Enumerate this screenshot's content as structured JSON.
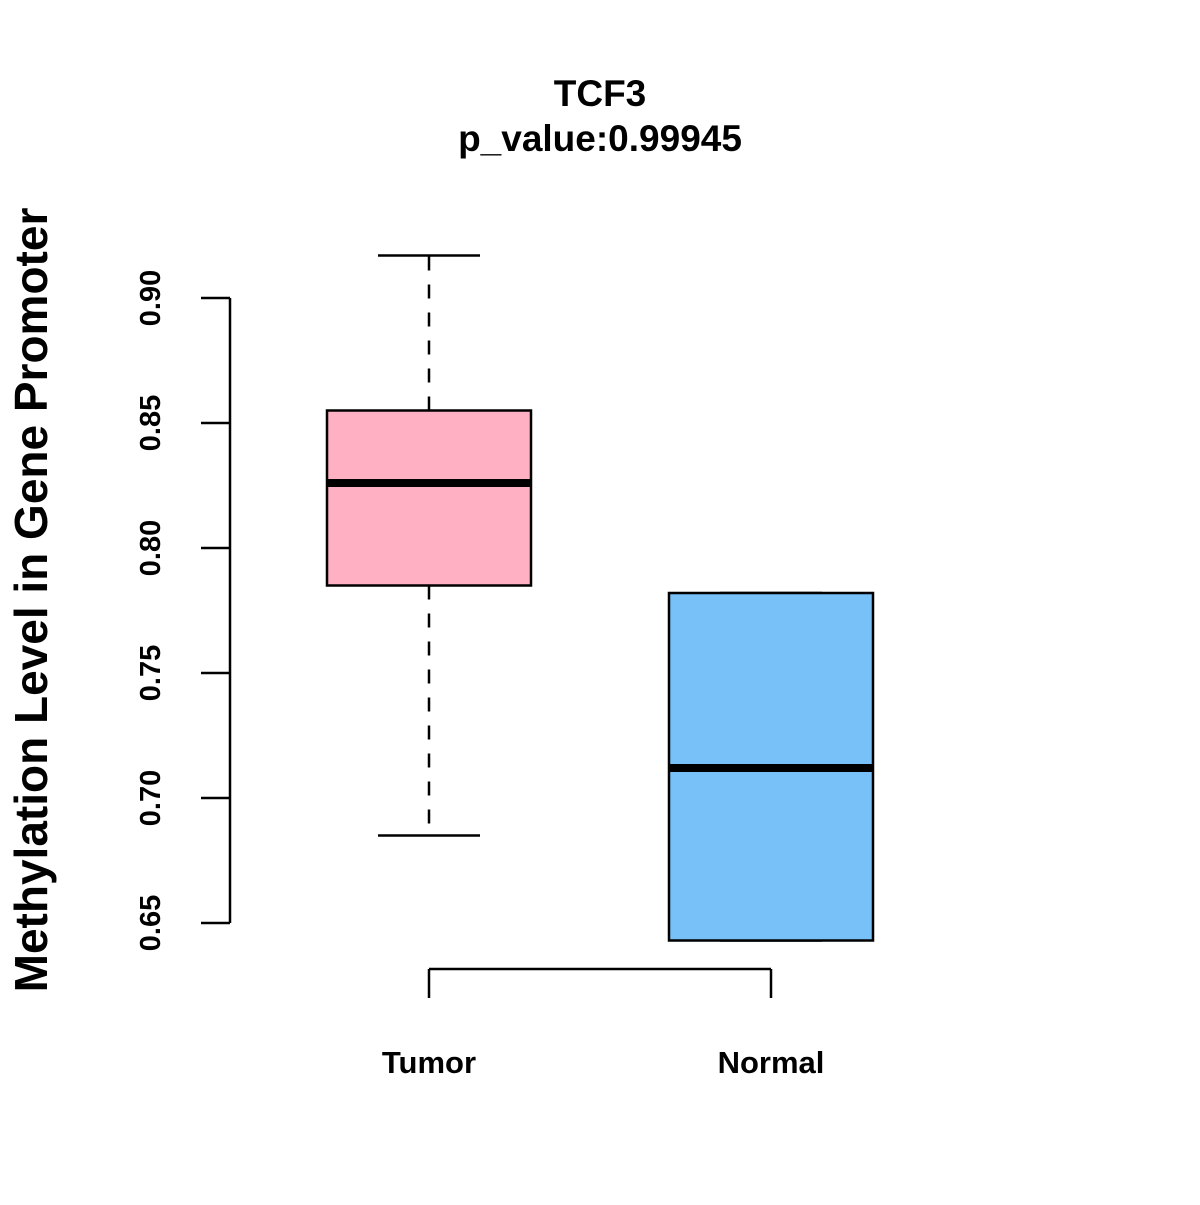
{
  "chart_data": {
    "type": "boxplot",
    "title": "TCF3",
    "subtitle": "p_value:0.99945",
    "xlabel": "",
    "ylabel": "Methylation Level in Gene Promoter",
    "ylim": [
      0.65,
      0.9
    ],
    "yticks": [
      0.65,
      0.7,
      0.75,
      0.8,
      0.85,
      0.9
    ],
    "ytick_labels": [
      "0.65",
      "0.70",
      "0.75",
      "0.80",
      "0.85",
      "0.90"
    ],
    "grid": false,
    "categories": [
      "Tumor",
      "Normal"
    ],
    "series": [
      {
        "name": "Tumor",
        "color": "#FFB1C3",
        "whisker_low": 0.685,
        "q1": 0.785,
        "median": 0.826,
        "q3": 0.855,
        "whisker_high": 0.917
      },
      {
        "name": "Normal",
        "color": "#77C0F8",
        "whisker_low": 0.643,
        "q1": 0.643,
        "median": 0.712,
        "q3": 0.782,
        "whisker_high": 0.782
      }
    ]
  }
}
